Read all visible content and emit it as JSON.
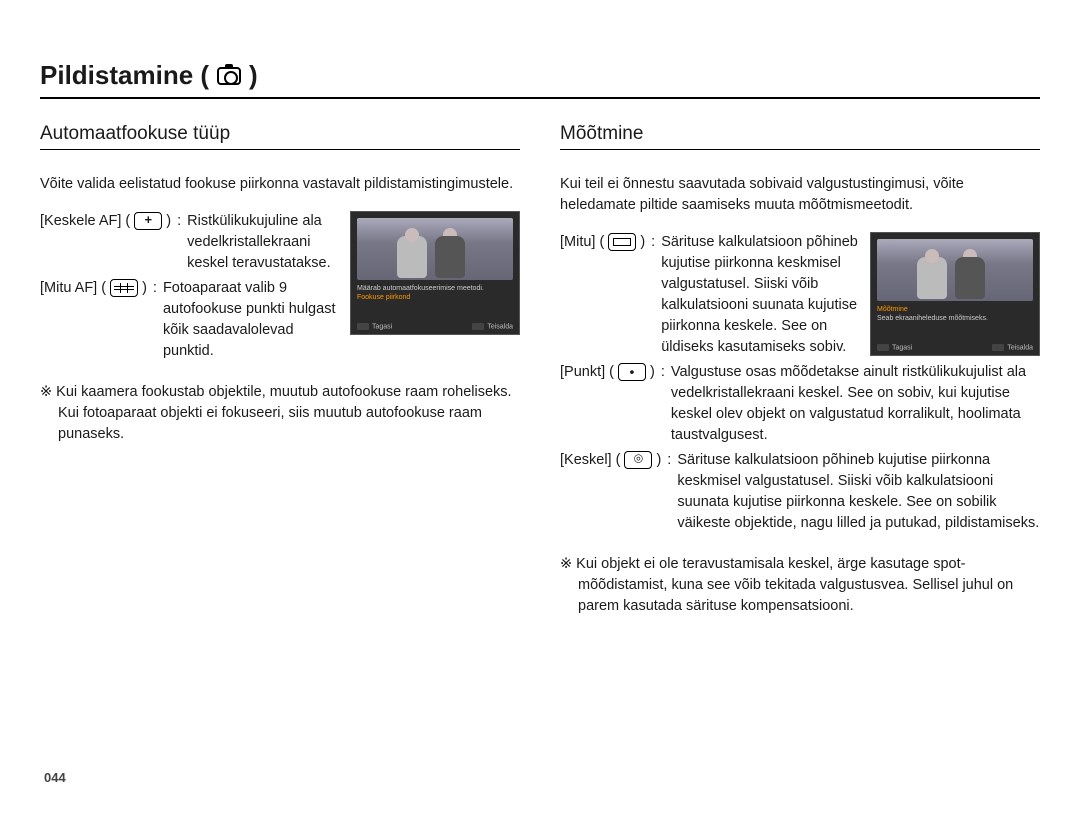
{
  "page_title_prefix": "Pildistamine (",
  "page_title_suffix": " )",
  "page_number": "044",
  "left": {
    "heading": "Automaatfookuse tüüp",
    "intro": "Võite valida eelistatud fookuse piirkonna vastavalt pildistamistingimustele.",
    "options": [
      {
        "label": "[Keskele AF]",
        "icon": "plus",
        "desc": "Ristkülikukujuline ala vedelkristallekraani keskel teravustatakse."
      },
      {
        "label": "[Mitu AF]",
        "icon": "grid",
        "desc": "Fotoaparaat valib 9 autofookuse punkti hulgast kõik saadavalolevad punktid."
      }
    ],
    "thumb": {
      "line1": "Määrab automaatfokuseerimise meetodi.",
      "line2": "Fookuse piirkond",
      "foot_left": "Tagasi",
      "foot_right": "Teisalda"
    },
    "note": "Kui kaamera fookustab objektile, muutub autofookuse raam roheliseks. Kui fotoaparaat objekti ei fokuseeri, siis muutub autofookuse raam punaseks."
  },
  "right": {
    "heading": "Mõõtmine",
    "intro": "Kui teil ei õnnestu saavutada sobivaid valgustustingimusi, võite heledamate piltide saamiseks muuta mõõtmismeetodit.",
    "options": [
      {
        "label": "[Mitu]",
        "icon": "multi",
        "desc": "Särituse kalkulatsioon põhineb kujutise piirkonna keskmisel valgustatusel. Siiski võib kalkulatsiooni suunata kujutise piirkonna keskele. See on üldiseks kasutamiseks sobiv."
      },
      {
        "label": "[Punkt]",
        "icon": "dot",
        "desc": "Valgustuse osas mõõdetakse ainult ristkülikukujulist ala vedelkristallekraani keskel. See on sobiv, kui kujutise keskel olev objekt on valgustatud korralikult, hoolimata taustvalgusest."
      },
      {
        "label": "[Keskel]",
        "icon": "center",
        "desc": "Särituse kalkulatsioon põhineb kujutise piirkonna keskmisel valgustatusel. Siiski võib kalkulatsiooni suunata kujutise piirkonna keskele. See on sobilik väikeste objektide, nagu lilled ja putukad, pildistamiseks."
      }
    ],
    "thumb": {
      "line1": "Mõõtmine",
      "line2": "Seab ekraaniheleduse mõõtmiseks.",
      "foot_left": "Tagasi",
      "foot_right": "Teisalda"
    },
    "note": "Kui objekt ei ole teravustamisala keskel, ärge kasutage spot-mõõdistamist, kuna see võib tekitada valgustusvea. Sellisel juhul on parem kasutada särituse kompensatsiooni."
  }
}
